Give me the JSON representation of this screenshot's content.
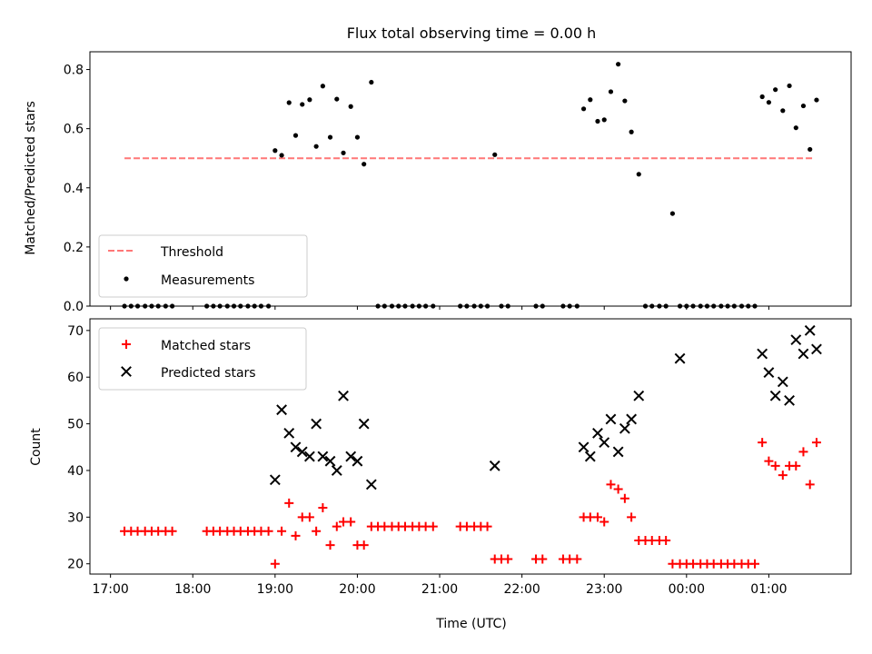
{
  "chart_data": {
    "title": "Flux total observing time = 0.00 h",
    "x_unit": "hours UTC (24 = 00:00 next day)",
    "xticks": [
      {
        "v": 17,
        "label": "17:00"
      },
      {
        "v": 18,
        "label": "18:00"
      },
      {
        "v": 19,
        "label": "19:00"
      },
      {
        "v": 20,
        "label": "20:00"
      },
      {
        "v": 21,
        "label": "21:00"
      },
      {
        "v": 22,
        "label": "22:00"
      },
      {
        "v": 23,
        "label": "23:00"
      },
      {
        "v": 24,
        "label": "00:00"
      },
      {
        "v": 25,
        "label": "01:00"
      }
    ],
    "xlim": [
      16.75,
      26.0
    ],
    "xlabel": "Time (UTC)",
    "panels": [
      {
        "type": "scatter",
        "ylabel": "Matched/Predicted stars",
        "ylim": [
          0,
          0.86
        ],
        "yticks": [
          {
            "v": 0,
            "label": "0.0"
          },
          {
            "v": 0.2,
            "label": "0.2"
          },
          {
            "v": 0.4,
            "label": "0.4"
          },
          {
            "v": 0.6,
            "label": "0.6"
          },
          {
            "v": 0.8,
            "label": "0.8"
          }
        ],
        "legend_position": "lower-left",
        "threshold": {
          "name": "Threshold",
          "value": 0.5,
          "x": [
            17.17,
            25.55
          ],
          "color": "#ff7777"
        },
        "measurements": {
          "name": "Measurements",
          "color": "#000000",
          "x": [
            17.17,
            17.25,
            17.33,
            17.42,
            17.5,
            17.58,
            17.67,
            17.75,
            18.17,
            18.25,
            18.33,
            18.42,
            18.5,
            18.58,
            18.67,
            18.75,
            18.83,
            18.92,
            19.0,
            19.08,
            19.17,
            19.25,
            19.33,
            19.42,
            19.5,
            19.58,
            19.67,
            19.75,
            19.83,
            19.92,
            20.0,
            20.08,
            20.17,
            20.25,
            20.33,
            20.42,
            20.5,
            20.58,
            20.67,
            20.75,
            20.83,
            20.92,
            21.25,
            21.33,
            21.42,
            21.5,
            21.58,
            21.67,
            21.75,
            21.83,
            22.17,
            22.25,
            22.5,
            22.58,
            22.67,
            22.75,
            22.83,
            22.92,
            23.0,
            23.08,
            23.17,
            23.25,
            23.33,
            23.42,
            23.5,
            23.58,
            23.67,
            23.75,
            23.83,
            23.92,
            24.0,
            24.08,
            24.17,
            24.25,
            24.33,
            24.42,
            24.5,
            24.58,
            24.67,
            24.75,
            24.83,
            24.92,
            25.0,
            25.08,
            25.17,
            25.25,
            25.33,
            25.42,
            25.5,
            25.58
          ],
          "y": [
            0,
            0,
            0,
            0,
            0,
            0,
            0,
            0,
            0,
            0,
            0,
            0,
            0,
            0,
            0,
            0,
            0,
            0,
            0.526,
            0.51,
            0.688,
            0.577,
            0.682,
            0.698,
            0.54,
            0.744,
            0.571,
            0.7,
            0.518,
            0.675,
            0.571,
            0.48,
            0.757,
            0,
            0,
            0,
            0,
            0,
            0,
            0,
            0,
            0,
            0,
            0,
            0,
            0,
            0,
            0.512,
            0,
            0,
            0,
            0,
            0,
            0,
            0,
            0.667,
            0.698,
            0.625,
            0.63,
            0.725,
            0.818,
            0.694,
            0.589,
            0.446,
            0,
            0,
            0,
            0,
            0.313,
            0,
            0,
            0,
            0,
            0,
            0,
            0,
            0,
            0,
            0,
            0,
            0,
            0.708,
            0.689,
            0.732,
            0.661,
            0.745,
            0.603,
            0.677,
            0.53,
            0.697
          ]
        }
      },
      {
        "type": "scatter",
        "ylabel": "Count",
        "ylim": [
          17.8,
          72.5
        ],
        "yticks": [
          {
            "v": 20,
            "label": "20"
          },
          {
            "v": 30,
            "label": "30"
          },
          {
            "v": 40,
            "label": "40"
          },
          {
            "v": 50,
            "label": "50"
          },
          {
            "v": 60,
            "label": "60"
          },
          {
            "v": 70,
            "label": "70"
          }
        ],
        "legend_position": "upper-left",
        "matched": {
          "name": "Matched stars",
          "color": "#ff0000",
          "x": [
            17.17,
            17.25,
            17.33,
            17.42,
            17.5,
            17.58,
            17.67,
            17.75,
            18.17,
            18.25,
            18.33,
            18.42,
            18.5,
            18.58,
            18.67,
            18.75,
            18.83,
            18.92,
            19.0,
            19.08,
            19.17,
            19.25,
            19.33,
            19.42,
            19.5,
            19.58,
            19.67,
            19.75,
            19.83,
            19.92,
            20.0,
            20.08,
            20.17,
            20.25,
            20.33,
            20.42,
            20.5,
            20.58,
            20.67,
            20.75,
            20.83,
            20.92,
            21.25,
            21.33,
            21.42,
            21.5,
            21.58,
            21.67,
            21.75,
            21.83,
            22.17,
            22.25,
            22.5,
            22.58,
            22.67,
            22.75,
            22.83,
            22.92,
            23.0,
            23.08,
            23.17,
            23.25,
            23.33,
            23.42,
            23.5,
            23.58,
            23.67,
            23.75,
            23.83,
            23.92,
            24.0,
            24.08,
            24.17,
            24.25,
            24.33,
            24.42,
            24.5,
            24.58,
            24.67,
            24.75,
            24.83,
            24.92,
            25.0,
            25.08,
            25.17,
            25.25,
            25.33,
            25.42,
            25.5,
            25.58
          ],
          "y": [
            27,
            27,
            27,
            27,
            27,
            27,
            27,
            27,
            27,
            27,
            27,
            27,
            27,
            27,
            27,
            27,
            27,
            27,
            20,
            27,
            33,
            26,
            30,
            30,
            27,
            32,
            24,
            28,
            29,
            29,
            24,
            24,
            28,
            28,
            28,
            28,
            28,
            28,
            28,
            28,
            28,
            28,
            28,
            28,
            28,
            28,
            28,
            21,
            21,
            21,
            21,
            21,
            21,
            21,
            21,
            30,
            30,
            30,
            29,
            37,
            36,
            34,
            30,
            25,
            25,
            25,
            25,
            25,
            20,
            20,
            20,
            20,
            20,
            20,
            20,
            20,
            20,
            20,
            20,
            20,
            20,
            46,
            42,
            41,
            39,
            41,
            41,
            44,
            37,
            46
          ]
        },
        "predicted": {
          "name": "Predicted stars",
          "color": "#000000",
          "x": [
            19.0,
            19.08,
            19.17,
            19.25,
            19.33,
            19.42,
            19.5,
            19.58,
            19.67,
            19.75,
            19.83,
            19.92,
            20.0,
            20.08,
            20.17,
            21.67,
            22.75,
            22.83,
            22.92,
            23.0,
            23.08,
            23.17,
            23.25,
            23.33,
            23.42,
            23.92,
            24.92,
            25.0,
            25.08,
            25.17,
            25.25,
            25.33,
            25.42,
            25.5,
            25.58
          ],
          "y": [
            38,
            53,
            48,
            45,
            44,
            43,
            50,
            43,
            42,
            40,
            56,
            43,
            42,
            50,
            37,
            41,
            45,
            43,
            48,
            46,
            51,
            44,
            49,
            51,
            56,
            64,
            65,
            61,
            56,
            59,
            55,
            68,
            65,
            70,
            66
          ]
        }
      }
    ]
  }
}
